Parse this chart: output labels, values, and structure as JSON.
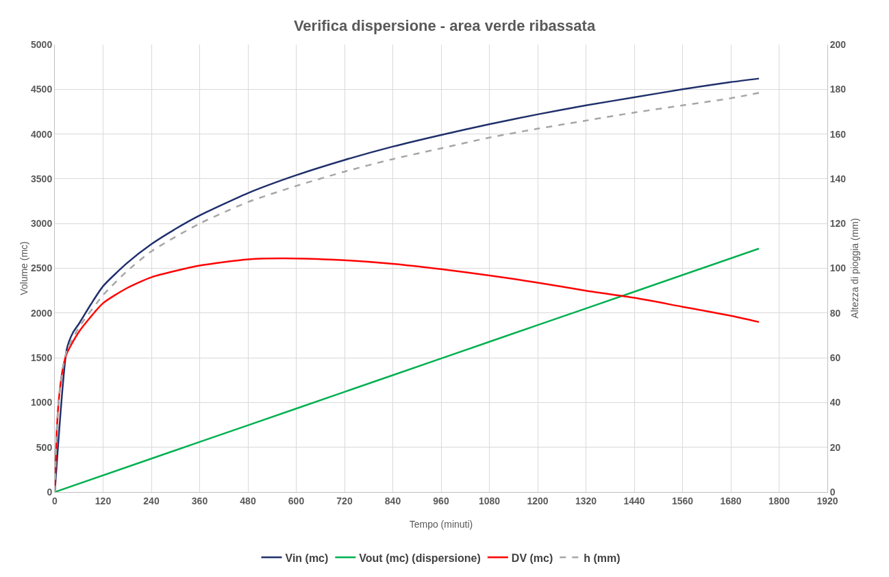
{
  "chart_data": {
    "type": "line",
    "title": "Verifica dispersione - area verde ribassata",
    "xlabel": "Tempo (minuti)",
    "ylabel": "Volume (mc)",
    "y2label": "Altezza di pioggia (mm)",
    "xlim": [
      0,
      1920
    ],
    "xticks": [
      0,
      120,
      240,
      360,
      480,
      600,
      720,
      840,
      960,
      1080,
      1200,
      1320,
      1440,
      1560,
      1680,
      1800,
      1920
    ],
    "ylim": [
      0,
      5000
    ],
    "yticks": [
      0,
      500,
      1000,
      1500,
      2000,
      2500,
      3000,
      3500,
      4000,
      4500,
      5000
    ],
    "y2lim": [
      0,
      200
    ],
    "y2ticks": [
      0,
      20,
      40,
      60,
      80,
      100,
      120,
      140,
      160,
      180,
      200
    ],
    "grid": true,
    "legend": "bottom",
    "marker": "none",
    "series": [
      {
        "name": "Vin (mc)",
        "color": "#1f2f6b",
        "line_style": "solid",
        "x": [
          0,
          30,
          45,
          60,
          90,
          120,
          180,
          240,
          300,
          360,
          480,
          600,
          720,
          840,
          960,
          1080,
          1200,
          1320,
          1440,
          1560,
          1680,
          1750
        ],
        "values": [
          0,
          1600,
          1780,
          1880,
          2100,
          2300,
          2560,
          2770,
          2940,
          3090,
          3340,
          3540,
          3710,
          3860,
          3990,
          4110,
          4220,
          4320,
          4410,
          4500,
          4580,
          4620
        ]
      },
      {
        "name": "Vout (mc) (dispersione)",
        "color": "#00b050",
        "line_style": "solid",
        "x": [
          0,
          240,
          480,
          720,
          960,
          1200,
          1440,
          1750
        ],
        "values": [
          0,
          373,
          746,
          1119,
          1492,
          1865,
          2238,
          2720
        ]
      },
      {
        "name": "DV (mc)",
        "color": "#ff0000",
        "line_style": "solid",
        "x": [
          0,
          5,
          10,
          20,
          30,
          60,
          120,
          180,
          240,
          360,
          480,
          600,
          720,
          840,
          960,
          1080,
          1200,
          1320,
          1440,
          1560,
          1680,
          1750
        ],
        "values": [
          0,
          690,
          1030,
          1380,
          1550,
          1790,
          2110,
          2280,
          2400,
          2530,
          2600,
          2610,
          2590,
          2550,
          2490,
          2420,
          2340,
          2250,
          2170,
          2070,
          1970,
          1900
        ]
      },
      {
        "name": "h (mm)",
        "color": "#a6a6a6",
        "line_style": "dashed",
        "axis": "y2",
        "x": [
          0,
          5,
          10,
          20,
          30,
          60,
          120,
          180,
          240,
          360,
          480,
          600,
          720,
          840,
          960,
          1080,
          1200,
          1320,
          1440,
          1560,
          1680,
          1750
        ],
        "values": [
          0,
          27.6,
          41.6,
          55.6,
          63.2,
          73.6,
          88,
          98.8,
          107.6,
          120,
          129.6,
          136.8,
          143.2,
          148.8,
          153.6,
          158.4,
          162.4,
          166,
          169.6,
          172.8,
          176,
          178.4
        ]
      }
    ]
  }
}
